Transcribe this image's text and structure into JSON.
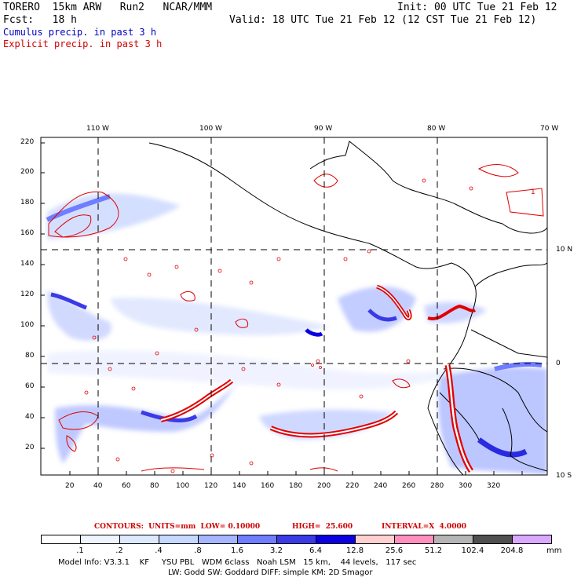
{
  "header": {
    "model": "TORERO  15km ARW   Run2   NCAR/MMM",
    "init": "Init: 00 UTC Tue 21 Feb 12",
    "fcst": "Fcst:   18 h",
    "valid": "Valid: 18 UTC Tue 21 Feb 12 (12 CST Tue 21 Feb 12)",
    "cumulus": "Cumulus precip. in past 3 h",
    "explicit": "Explicit precip. in past 3 h"
  },
  "lon_labels": [
    "110 W",
    "100 W",
    "90 W",
    "80 W",
    "70 W"
  ],
  "lat_labels": [
    "10 N",
    "0",
    "10 S"
  ],
  "y_ticks": [
    "220",
    "200",
    "180",
    "160",
    "140",
    "120",
    "100",
    "80",
    "60",
    "40",
    "20"
  ],
  "x_ticks": [
    "20",
    "40",
    "60",
    "80",
    "100",
    "120",
    "140",
    "160",
    "180",
    "200",
    "220",
    "240",
    "260",
    "280",
    "300",
    "320"
  ],
  "contour_info": {
    "contours": "CONTOURS:  UNITS=mm  LOW= 0.10000",
    "high": "HIGH=  25.600",
    "interval": "INTERVAL=X  4.0000"
  },
  "colorbar": {
    "labels": [
      ".1",
      ".2",
      ".4",
      ".8",
      "1.6",
      "3.2",
      "6.4",
      "12.8",
      "25.6",
      "51.2",
      "102.4",
      "204.8"
    ],
    "units": "mm",
    "colors": [
      "#ffffff",
      "#ffffff",
      "#eef5ff",
      "#dde9ff",
      "#c6d8ff",
      "#a5b5ff",
      "#6f7dff",
      "#3a3ae6",
      "#0a00e0",
      "#ffd0d0",
      "#ff8fbf",
      "#b4b4b4",
      "#505050",
      "#d9a8ff"
    ]
  },
  "model_info": {
    "line1": "Model Info: V3.3.1    KF     YSU PBL   WDM 6class   Noah LSM   15 km,    44 levels,   117 sec",
    "line2": "LW: Godd SW: Goddard DIFF: simple KM: 2D Smagor"
  },
  "map_label": "1"
}
